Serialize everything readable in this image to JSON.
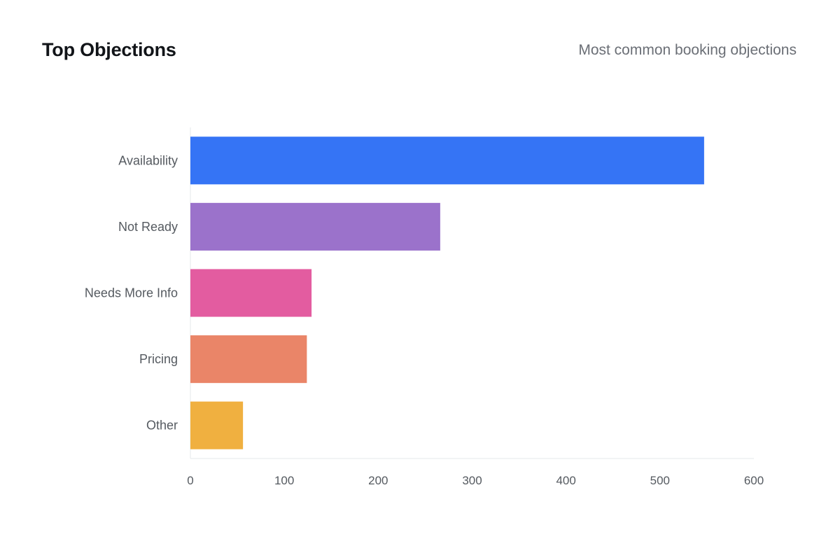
{
  "header": {
    "title": "Top Objections",
    "subtitle": "Most common booking objections"
  },
  "chart_data": {
    "type": "bar",
    "orientation": "horizontal",
    "title": "Top Objections",
    "subtitle": "Most common booking objections",
    "categories": [
      "Availability",
      "Not Ready",
      "Needs More Info",
      "Pricing",
      "Other"
    ],
    "values": [
      547,
      266,
      129,
      124,
      56
    ],
    "colors": [
      "#3574f5",
      "#9b72cb",
      "#e35ca0",
      "#ea8568",
      "#f0b040"
    ],
    "xlim": [
      0,
      600
    ],
    "xticks": [
      0,
      100,
      200,
      300,
      400,
      500,
      600
    ],
    "xlabel": "",
    "ylabel": "",
    "grid": false,
    "legend": "none"
  }
}
